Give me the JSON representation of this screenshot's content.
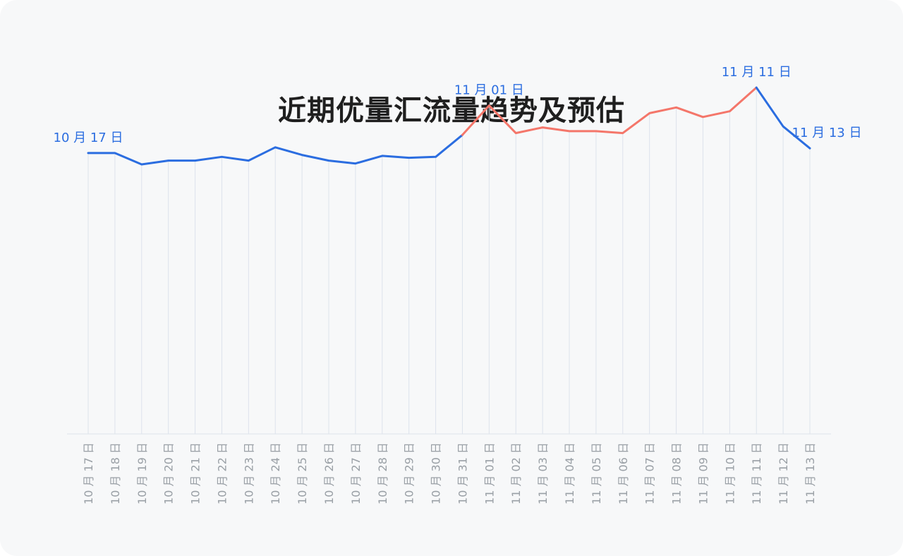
{
  "chart_data": {
    "type": "line",
    "title": "近期优量汇流量趋势及预估",
    "x": [
      "10 月 17 日",
      "10 月 18 日",
      "10 月 19 日",
      "10 月 20 日",
      "10 月 21 日",
      "10 月 22 日",
      "10 月 23 日",
      "10 月 24 日",
      "10 月 25 日",
      "10 月 26 日",
      "10 月 27 日",
      "10 月 28 日",
      "10 月 29 日",
      "10 月 30 日",
      "10 月 31 日",
      "11 月 01 日",
      "11 月 02 日",
      "11 月 03 日",
      "11 月 04 日",
      "11 月 05 日",
      "11 月 06 日",
      "11 月 07 日",
      "11 月 08 日",
      "11 月 09 日",
      "11 月 10 日",
      "11 月 11 日",
      "11 月 12 日",
      "11 月 13 日"
    ],
    "values": [
      296,
      296,
      284,
      288,
      288,
      292,
      288,
      302,
      294,
      288,
      285,
      293,
      291,
      292,
      315,
      346,
      317,
      323,
      319,
      319,
      317,
      338,
      344,
      334,
      340,
      365,
      324,
      301
    ],
    "segments": [
      {
        "from": 0,
        "to": 14,
        "color": "#2b6de0"
      },
      {
        "from": 14,
        "to": 25,
        "color": "#f4766a"
      },
      {
        "from": 25,
        "to": 27,
        "color": "#2b6de0"
      }
    ],
    "annotations": [
      {
        "index": 0,
        "text": "10 月 17 日"
      },
      {
        "index": 15,
        "text": "11 月 01 日"
      },
      {
        "index": 25,
        "text": "11 月 11 日"
      },
      {
        "index": 27,
        "text": "11 月 13 日"
      }
    ],
    "ylim": [
      0,
      400
    ],
    "grid": "vertical",
    "xlabel": "",
    "ylabel": ""
  },
  "colors": {
    "blue": "#2b6de0",
    "red": "#f4766a",
    "grid": "#dde3ec",
    "tick": "#9aa0a6"
  }
}
